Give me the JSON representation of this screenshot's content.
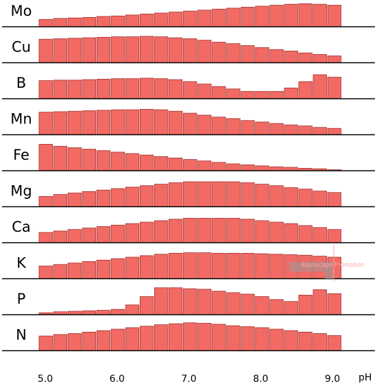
{
  "chart_data": {
    "type": "bar",
    "title": "",
    "xlabel": "pH",
    "ylabel": "",
    "x": [
      5.0,
      5.2,
      5.4,
      5.6,
      5.8,
      6.0,
      6.2,
      6.4,
      6.6,
      6.8,
      7.0,
      7.2,
      7.4,
      7.6,
      7.8,
      8.0,
      8.2,
      8.4,
      8.6,
      8.8,
      9.0
    ],
    "x_ticks": [
      "5.0",
      "6.0",
      "7.0",
      "8.0",
      "9.0"
    ],
    "grid": false,
    "series": [
      {
        "name": "Mo",
        "values": [
          15,
          17,
          18,
          19,
          21,
          22,
          24,
          26,
          28,
          30,
          32,
          34,
          36,
          38,
          40,
          42,
          44,
          46,
          47,
          46,
          44
        ]
      },
      {
        "name": "Cu",
        "values": [
          48,
          49,
          50,
          51,
          52,
          53,
          53,
          54,
          53,
          51,
          49,
          46,
          42,
          39,
          35,
          31,
          27,
          24,
          20,
          17,
          14
        ]
      },
      {
        "name": "B",
        "values": [
          37,
          38,
          38,
          39,
          40,
          41,
          41,
          42,
          41,
          39,
          35,
          30,
          25,
          20,
          15,
          15,
          15,
          22,
          35,
          49,
          44
        ]
      },
      {
        "name": "Mn",
        "values": [
          46,
          47,
          48,
          49,
          50,
          51,
          51,
          52,
          51,
          48,
          44,
          40,
          36,
          33,
          29,
          26,
          23,
          20,
          18,
          15,
          13
        ]
      },
      {
        "name": "Fe",
        "values": [
          54,
          50,
          47,
          44,
          41,
          38,
          35,
          32,
          29,
          26,
          23,
          20,
          17,
          14,
          12,
          10,
          8,
          7,
          5,
          4,
          2
        ]
      },
      {
        "name": "Mg",
        "values": [
          21,
          25,
          28,
          31,
          34,
          37,
          40,
          43,
          46,
          49,
          51,
          51,
          51,
          51,
          49,
          46,
          43,
          39,
          36,
          32,
          29
        ]
      },
      {
        "name": "Ca",
        "values": [
          21,
          24,
          27,
          30,
          33,
          36,
          39,
          42,
          45,
          48,
          50,
          50,
          50,
          50,
          48,
          45,
          42,
          39,
          35,
          31,
          27
        ]
      },
      {
        "name": "K",
        "values": [
          26,
          29,
          32,
          35,
          38,
          41,
          44,
          47,
          50,
          52,
          53,
          53,
          52,
          52,
          52,
          51,
          50,
          49,
          48,
          46,
          44
        ]
      },
      {
        "name": "P",
        "values": [
          4,
          6,
          7,
          8,
          9,
          11,
          20,
          37,
          55,
          55,
          53,
          52,
          48,
          45,
          42,
          37,
          31,
          27,
          40,
          51,
          43
        ]
      },
      {
        "name": "N",
        "values": [
          30,
          33,
          35,
          38,
          41,
          44,
          47,
          50,
          53,
          55,
          57,
          56,
          54,
          51,
          49,
          47,
          44,
          41,
          38,
          35,
          31
        ]
      }
    ]
  },
  "watermark": {
    "text": "Aquascape Promotion"
  }
}
